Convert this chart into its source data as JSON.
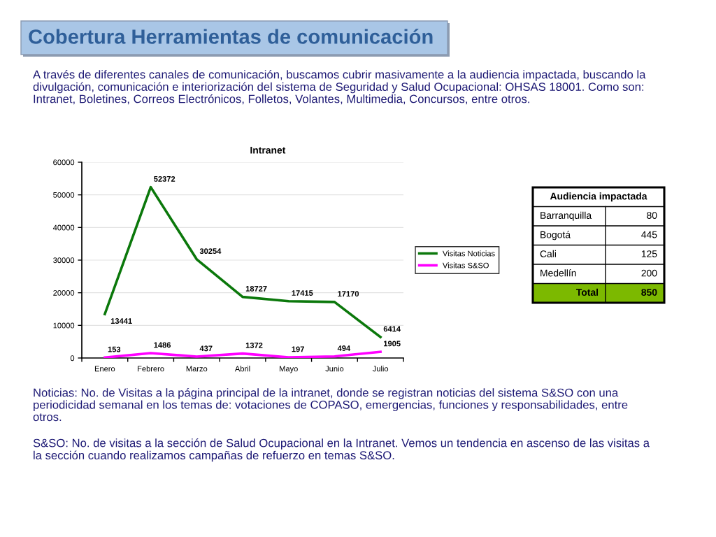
{
  "chart_data": [
    {
      "type": "other",
      "title": "Cobertura Herramientas de comunicación",
      "annotations": [
        "A través de diferentes canales de comunicación, buscamos cubrir masivamente a la audiencia impactada, buscando la divulgación, comunicación e interiorización del sistema de Seguridad y Salud Ocupacional: OHSAS 18001. Como son: Intranet, Boletines, Correos Electrónicos, Folletos, Volantes, Multimedia, Concursos, entre otros."
      ]
    },
    {
      "type": "line",
      "title": "Intranet",
      "categories": [
        "Enero",
        "Febrero",
        "Marzo",
        "Abril",
        "Mayo",
        "Junio",
        "Julio"
      ],
      "series": [
        {
          "name": "Visitas Noticias",
          "color": "#0b780b",
          "values": [
            13441,
            52372,
            30254,
            18727,
            17415,
            17170,
            6414
          ]
        },
        {
          "name": "Visitas S&SO",
          "color": "#ff00ff",
          "values": [
            153,
            1486,
            437,
            1372,
            197,
            494,
            1905
          ]
        }
      ],
      "ylim": [
        0,
        60000
      ],
      "yticks": [
        0,
        10000,
        20000,
        30000,
        40000,
        50000,
        60000
      ],
      "grid": "y",
      "legend": "right",
      "data_labels": true,
      "annotations": [
        "Noticias: No. de Visitas a la página principal de la intranet, donde se registran noticias del sistema S&SO con una periodicidad semanal en los temas de: votaciones de COPASO, emergencias, funciones y responsabilidades, entre otros.",
        "S&SO: No. de visitas a la sección de Salud Ocupacional en la Intranet. Vemos un tendencia en ascenso de las visitas a la sección cuando realizamos campañas de refuerzo en temas S&SO."
      ]
    },
    {
      "type": "other",
      "title": "Audiencia impactada",
      "categories": [
        "Barranquilla",
        "Bogotá",
        "Cali",
        "Medellín"
      ],
      "values": [
        80,
        445,
        125,
        200
      ],
      "data_labels": true,
      "annotations": [
        "Total"
      ],
      "totals": [
        "850"
      ],
      "color": "#7cb900"
    }
  ]
}
